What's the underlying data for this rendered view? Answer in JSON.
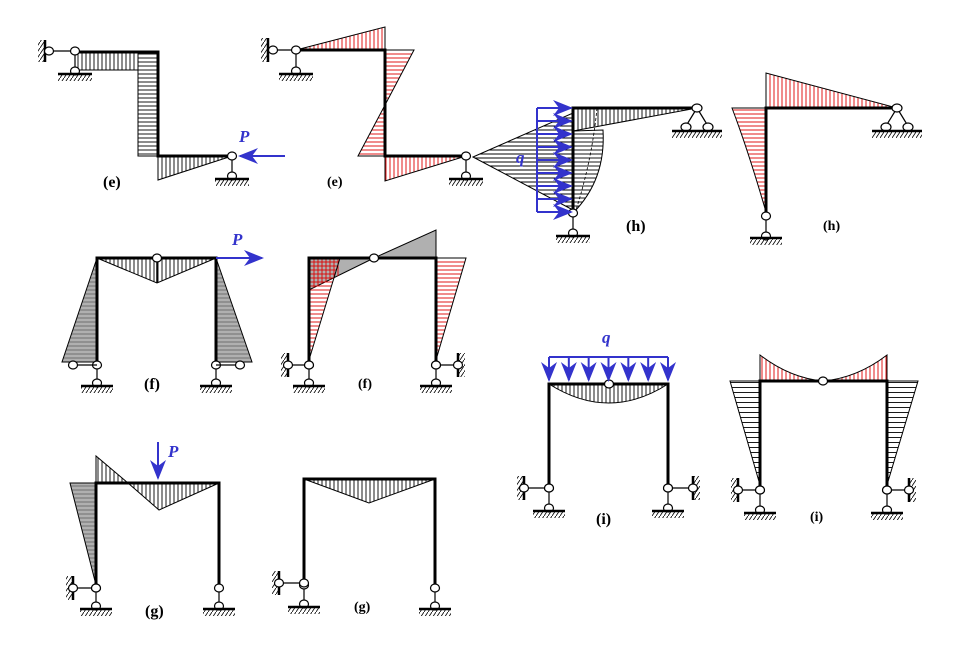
{
  "colors": {
    "member": "#000000",
    "load": "#3333cc",
    "red_hatch": "#dd0000",
    "grey_fill": "#b0b0b0"
  },
  "labels": {
    "e_left": "(e)",
    "e_right": "(e)",
    "e_load": "P",
    "h_left": "(h)",
    "h_right": "(h)",
    "h_load": "q",
    "f_left": "(f)",
    "f_right": "(f)",
    "f_load": "P",
    "g_left": "(g)",
    "g_right": "(g)",
    "g_load": "P",
    "i_left": "(i)",
    "i_right": "(i)",
    "i_load": "q"
  }
}
